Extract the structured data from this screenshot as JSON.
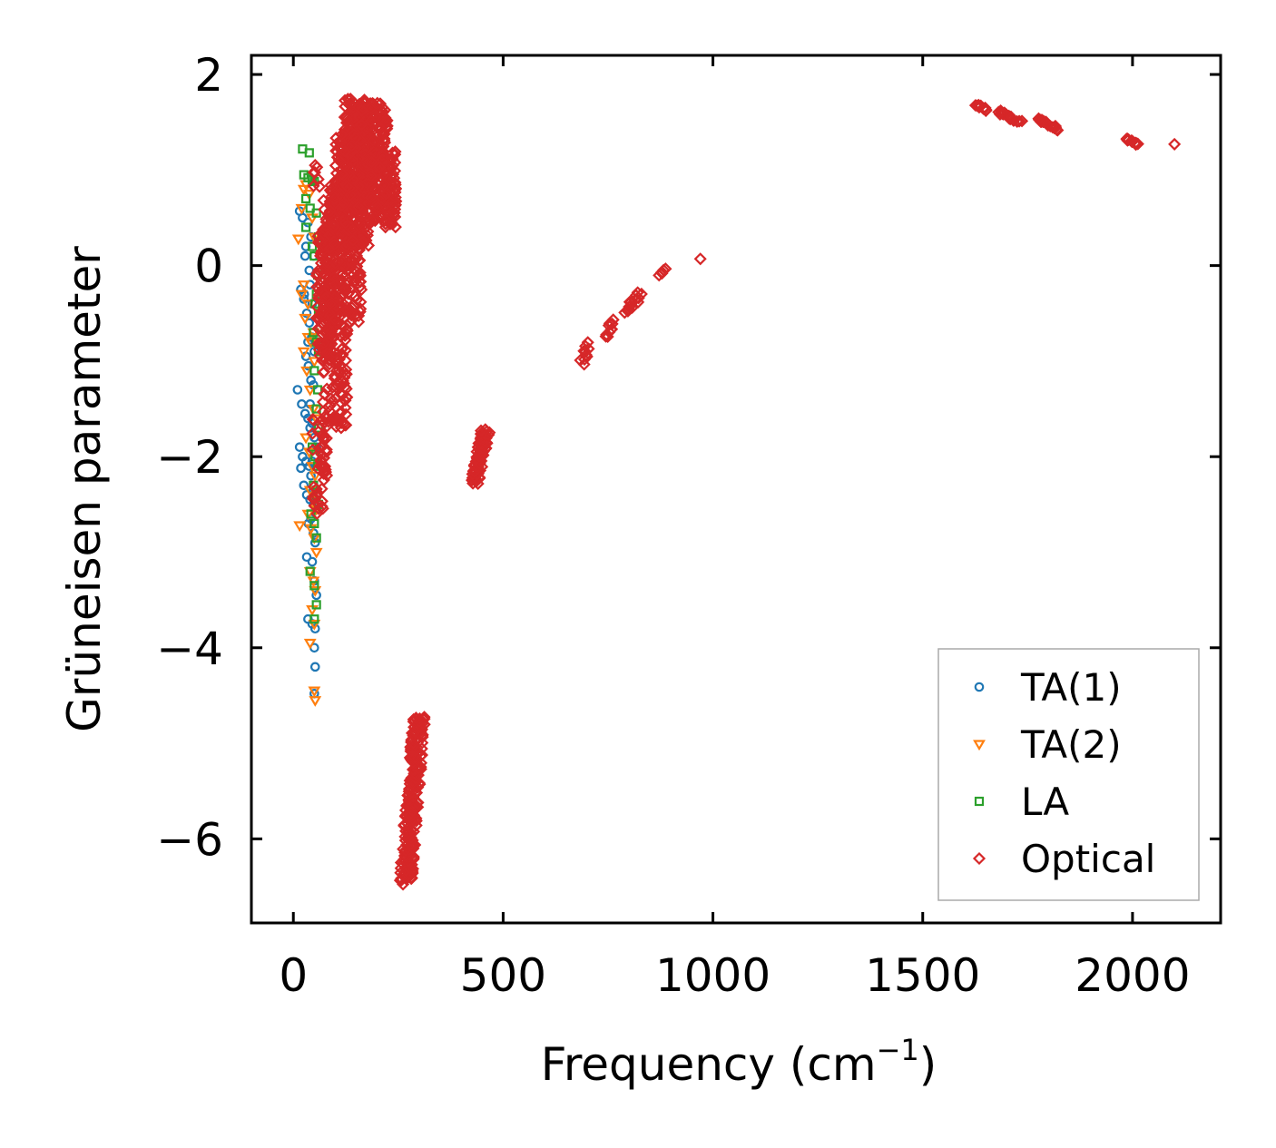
{
  "chart_data": {
    "type": "scatter",
    "title": "",
    "xlabel": "Frequency (cm",
    "xlabel_sup": "−1",
    "xlabel_close": ")",
    "ylabel": "Grüneisen parameter",
    "xlim": [
      -100,
      2210
    ],
    "ylim": [
      -6.88,
      2.2
    ],
    "xticks": [
      0,
      500,
      1000,
      1500,
      2000
    ],
    "xtick_labels": [
      "0",
      "500",
      "1000",
      "1500",
      "2000"
    ],
    "yticks": [
      2,
      0,
      -2,
      -4,
      -6
    ],
    "ytick_labels": [
      "2",
      "0",
      "−2",
      "−4",
      "−6"
    ],
    "grid": false,
    "legend_position": "lower-right",
    "series": [
      {
        "name": "TA(1)",
        "marker": "circle",
        "color": "#1f77b4",
        "points": [
          [
            15,
            0.57
          ],
          [
            22,
            0.5
          ],
          [
            28,
            0.1
          ],
          [
            35,
            0.45
          ],
          [
            42,
            0.3
          ],
          [
            48,
            0.1
          ],
          [
            18,
            -0.25
          ],
          [
            25,
            -0.35
          ],
          [
            32,
            -0.5
          ],
          [
            38,
            -0.6
          ],
          [
            44,
            -0.75
          ],
          [
            50,
            -0.9
          ],
          [
            30,
            -0.95
          ],
          [
            36,
            -1.05
          ],
          [
            42,
            -1.2
          ],
          [
            48,
            -1.25
          ],
          [
            10,
            -1.3
          ],
          [
            20,
            -1.45
          ],
          [
            28,
            -1.55
          ],
          [
            35,
            -1.6
          ],
          [
            40,
            -1.7
          ],
          [
            45,
            -1.65
          ],
          [
            50,
            -1.8
          ],
          [
            55,
            -1.9
          ],
          [
            15,
            -1.9
          ],
          [
            22,
            -2.0
          ],
          [
            30,
            -2.05
          ],
          [
            38,
            -2.1
          ],
          [
            45,
            -2.05
          ],
          [
            52,
            -2.1
          ],
          [
            18,
            -2.12
          ],
          [
            25,
            -2.3
          ],
          [
            32,
            -2.4
          ],
          [
            40,
            -2.45
          ],
          [
            48,
            -2.5
          ],
          [
            55,
            -2.55
          ],
          [
            36,
            -2.7
          ],
          [
            42,
            -2.65
          ],
          [
            48,
            -2.8
          ],
          [
            52,
            -2.9
          ],
          [
            32,
            -3.05
          ],
          [
            45,
            -3.1
          ],
          [
            50,
            -3.3
          ],
          [
            55,
            -3.45
          ],
          [
            35,
            -3.7
          ],
          [
            45,
            -3.75
          ],
          [
            52,
            -3.8
          ],
          [
            50,
            -4.0
          ],
          [
            52,
            -4.2
          ],
          [
            50,
            -4.48
          ],
          [
            40,
            -0.2
          ],
          [
            45,
            -0.4
          ],
          [
            40,
            -1.45
          ],
          [
            42,
            -2.2
          ],
          [
            48,
            -2.35
          ],
          [
            35,
            -0.8
          ],
          [
            26,
            -0.3
          ],
          [
            30,
            0.2
          ],
          [
            38,
            -0.05
          ]
        ]
      },
      {
        "name": "TA(2)",
        "marker": "triangle-down",
        "color": "#ff7f0e",
        "points": [
          [
            12,
            0.28
          ],
          [
            20,
            0.6
          ],
          [
            25,
            0.8
          ],
          [
            30,
            0.85
          ],
          [
            38,
            0.75
          ],
          [
            45,
            0.5
          ],
          [
            50,
            0.3
          ],
          [
            20,
            -0.3
          ],
          [
            28,
            -0.55
          ],
          [
            35,
            -0.75
          ],
          [
            42,
            -0.8
          ],
          [
            48,
            -0.7
          ],
          [
            25,
            -0.9
          ],
          [
            32,
            -1.1
          ],
          [
            40,
            -1.3
          ],
          [
            48,
            -1.5
          ],
          [
            55,
            -1.6
          ],
          [
            30,
            -1.8
          ],
          [
            38,
            -1.95
          ],
          [
            45,
            -2.1
          ],
          [
            52,
            -2.2
          ],
          [
            40,
            -2.35
          ],
          [
            48,
            -2.45
          ],
          [
            55,
            -2.55
          ],
          [
            15,
            -2.72
          ],
          [
            35,
            -2.6
          ],
          [
            42,
            -2.75
          ],
          [
            50,
            -2.85
          ],
          [
            55,
            -3.0
          ],
          [
            40,
            -3.2
          ],
          [
            48,
            -3.3
          ],
          [
            52,
            -3.4
          ],
          [
            45,
            -3.6
          ],
          [
            50,
            -3.75
          ],
          [
            40,
            -3.95
          ],
          [
            50,
            -4.45
          ],
          [
            52,
            -4.55
          ],
          [
            25,
            -0.2
          ],
          [
            35,
            -0.4
          ],
          [
            50,
            -1.0
          ]
        ]
      },
      {
        "name": "LA",
        "marker": "square",
        "color": "#2ca02c",
        "points": [
          [
            22,
            1.22
          ],
          [
            38,
            1.18
          ],
          [
            25,
            0.95
          ],
          [
            35,
            0.92
          ],
          [
            45,
            0.9
          ],
          [
            50,
            0.88
          ],
          [
            30,
            0.7
          ],
          [
            40,
            0.6
          ],
          [
            55,
            0.55
          ],
          [
            60,
            0.3
          ],
          [
            50,
            0.1
          ],
          [
            58,
            -0.1
          ],
          [
            55,
            -0.3
          ],
          [
            60,
            -0.5
          ],
          [
            48,
            -0.7
          ],
          [
            55,
            -0.8
          ],
          [
            60,
            -0.9
          ],
          [
            50,
            -1.1
          ],
          [
            58,
            -1.3
          ],
          [
            55,
            -1.5
          ],
          [
            60,
            -1.7
          ],
          [
            45,
            -1.9
          ],
          [
            52,
            -2.0
          ],
          [
            58,
            -2.1
          ],
          [
            48,
            -2.3
          ],
          [
            55,
            -2.4
          ],
          [
            60,
            -2.5
          ],
          [
            42,
            -2.6
          ],
          [
            50,
            -2.7
          ],
          [
            55,
            -2.85
          ],
          [
            40,
            -3.2
          ],
          [
            50,
            -3.35
          ],
          [
            55,
            -3.55
          ],
          [
            50,
            -3.7
          ],
          [
            30,
            0.4
          ],
          [
            45,
            0.2
          ],
          [
            52,
            -0.4
          ]
        ]
      },
      {
        "name": "Optical",
        "marker": "diamond",
        "color": "#d62728",
        "points": [],
        "clusters": [
          {
            "x": [
              55,
              100
            ],
            "y": [
              -1.0,
              0.4
            ],
            "n": 140
          },
          {
            "x": [
              45,
              80
            ],
            "y": [
              -2.6,
              -1.6
            ],
            "n": 45
          },
          {
            "x": [
              48,
              65
            ],
            "y": [
              0.8,
              1.05
            ],
            "n": 6
          },
          {
            "x": [
              70,
              130
            ],
            "y": [
              -1.7,
              0.9
            ],
            "n": 230
          },
          {
            "x": [
              85,
              165
            ],
            "y": [
              -0.6,
              0.9
            ],
            "n": 200
          },
          {
            "x": [
              120,
              180
            ],
            "y": [
              0.2,
              1.75
            ],
            "n": 280
          },
          {
            "x": [
              150,
              225
            ],
            "y": [
              0.6,
              1.7
            ],
            "n": 230
          },
          {
            "x": [
              180,
              245
            ],
            "y": [
              0.4,
              1.2
            ],
            "n": 130
          },
          {
            "x": [
              100,
              150
            ],
            "y": [
              0.7,
              1.4
            ],
            "n": 80
          }
        ],
        "bands": [
          {
            "x0": 268,
            "y0": -6.45,
            "x1": 300,
            "y1": -4.72,
            "n": 220,
            "spread": 7
          },
          {
            "x0": 432,
            "y0": -2.27,
            "x1": 458,
            "y1": -1.72,
            "n": 90,
            "spread": 5
          },
          {
            "x0": 690,
            "y0": -1.02,
            "x1": 705,
            "y1": -0.82,
            "n": 10,
            "spread": 4
          },
          {
            "x0": 745,
            "y0": -0.75,
            "x1": 760,
            "y1": -0.58,
            "n": 10,
            "spread": 3
          },
          {
            "x0": 790,
            "y0": -0.5,
            "x1": 830,
            "y1": -0.28,
            "n": 14,
            "spread": 4
          },
          {
            "x0": 872,
            "y0": -0.1,
            "x1": 888,
            "y1": -0.04,
            "n": 6,
            "spread": 2
          },
          {
            "x0": 1625,
            "y0": 1.69,
            "x1": 1650,
            "y1": 1.62,
            "n": 12,
            "spread": 3
          },
          {
            "x0": 1680,
            "y0": 1.62,
            "x1": 1730,
            "y1": 1.5,
            "n": 22,
            "spread": 3
          },
          {
            "x0": 1770,
            "y0": 1.54,
            "x1": 1825,
            "y1": 1.43,
            "n": 22,
            "spread": 3
          },
          {
            "x0": 1985,
            "y0": 1.33,
            "x1": 2010,
            "y1": 1.27,
            "n": 12,
            "spread": 2
          }
        ],
        "singles": [
          [
            970,
            0.07
          ],
          [
            2100,
            1.27
          ],
          [
            52,
            1.05
          ],
          [
            60,
            -0.05
          ],
          [
            75,
            -2.1
          ],
          [
            68,
            -1.9
          ],
          [
            88,
            -0.4
          ]
        ]
      }
    ]
  }
}
